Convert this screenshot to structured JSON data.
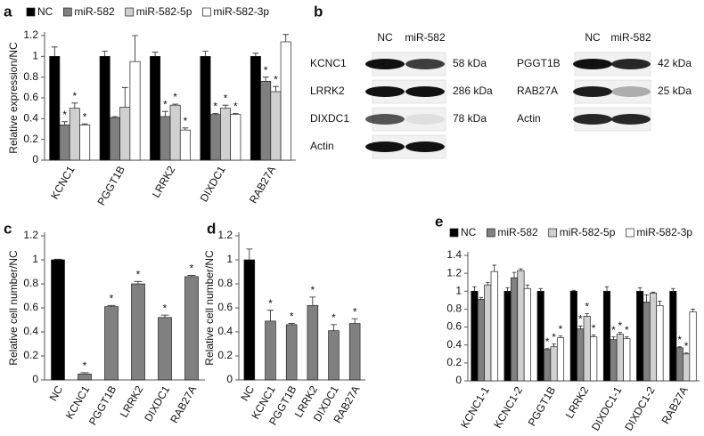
{
  "chart_data": [
    {
      "type": "bar",
      "label": "a",
      "y_label": "Relative expression/NC",
      "categories": [
        "KCNC1",
        "PGGT1B",
        "LRRK2",
        "DIXDC1",
        "RAB27A"
      ],
      "series": [
        {
          "name": "NC",
          "color": "#000000",
          "values": [
            1,
            1,
            1,
            1,
            1
          ],
          "errors": [
            0.09,
            0.05,
            0.04,
            0.05,
            0.03
          ],
          "stars": [
            null,
            null,
            null,
            null,
            null
          ]
        },
        {
          "name": "miR-582",
          "color": "#808080",
          "values": [
            0.34,
            0.41,
            0.42,
            0.44,
            0.76
          ],
          "errors": [
            0.03,
            0.01,
            0.05,
            0.01,
            0.04
          ],
          "stars": [
            "*",
            null,
            "*",
            "*",
            "*"
          ]
        },
        {
          "name": "miR-582-5p",
          "color": "#d0d0d0",
          "values": [
            0.5,
            0.51,
            0.53,
            0.5,
            0.66
          ],
          "errors": [
            0.05,
            0.19,
            0.01,
            0.03,
            0.05
          ],
          "stars": [
            "*",
            null,
            "*",
            "*",
            "*"
          ]
        },
        {
          "name": "miR-582-3p",
          "color": "#ffffff",
          "values": [
            0.34,
            0.95,
            0.29,
            0.44,
            1.14
          ],
          "errors": [
            0.01,
            0.25,
            0.02,
            0.01,
            0.07
          ],
          "stars": [
            "*",
            null,
            "*",
            "*",
            null
          ]
        }
      ],
      "ylim": [
        0,
        1.2
      ],
      "yticks": [
        0,
        0.2,
        0.4,
        0.6,
        0.8,
        1,
        1.2
      ]
    },
    {
      "type": "bar",
      "label": "c",
      "y_label": "Relative cell number/NC",
      "categories": [
        "NC",
        "KCNC1",
        "PGGT1B",
        "LRRK2",
        "DIXDC1",
        "RAB27A"
      ],
      "values": [
        1,
        0.05,
        0.61,
        0.8,
        0.52,
        0.86
      ],
      "errors": [
        0.005,
        0.01,
        0.01,
        0.02,
        0.02,
        0.01
      ],
      "stars": [
        null,
        "*",
        "*",
        "*",
        "*",
        "*"
      ],
      "colors": [
        "#000000",
        "#808080",
        "#808080",
        "#808080",
        "#808080",
        "#808080"
      ],
      "ylim": [
        0,
        1.2
      ],
      "yticks": [
        0,
        0.2,
        0.4,
        0.6,
        0.8,
        1,
        1.2
      ]
    },
    {
      "type": "bar",
      "label": "d",
      "y_label": "Relative cell number/NC",
      "categories": [
        "NC",
        "KCNC1",
        "PGGT1B",
        "LRRK2",
        "DIXDC1",
        "RAB27A"
      ],
      "values": [
        1,
        0.49,
        0.46,
        0.62,
        0.41,
        0.47
      ],
      "errors": [
        0.09,
        0.09,
        0.01,
        0.07,
        0.05,
        0.04
      ],
      "stars": [
        null,
        "*",
        "*",
        "*",
        "*",
        "*"
      ],
      "colors": [
        "#000000",
        "#808080",
        "#808080",
        "#808080",
        "#808080",
        "#808080"
      ],
      "ylim": [
        0,
        1.2
      ],
      "yticks": [
        0,
        0.2,
        0.4,
        0.6,
        0.8,
        1,
        1.2
      ]
    },
    {
      "type": "bar",
      "label": "e",
      "categories": [
        "KCNC1-1",
        "KCNC1-2",
        "PGGT1B",
        "LRRK2",
        "DIXDC1-1",
        "DIXDC1-2",
        "RAB27A"
      ],
      "series": [
        {
          "name": "NC",
          "color": "#000000",
          "values": [
            1,
            1,
            1,
            1,
            1,
            1,
            1
          ],
          "errors": [
            0.05,
            0.04,
            0.03,
            0.01,
            0.05,
            0.04,
            0.03
          ],
          "stars": [
            null,
            null,
            null,
            null,
            null,
            null,
            null
          ]
        },
        {
          "name": "miR-582",
          "color": "#808080",
          "values": [
            0.91,
            1.15,
            0.35,
            0.58,
            0.46,
            0.88,
            0.37
          ],
          "errors": [
            0.02,
            0.06,
            0.01,
            0.03,
            0.03,
            0.08,
            0.01
          ],
          "stars": [
            null,
            null,
            "*",
            "*",
            "*",
            null,
            "*"
          ]
        },
        {
          "name": "miR-582-5p",
          "color": "#d0d0d0",
          "values": [
            1.07,
            1.23,
            0.38,
            0.72,
            0.52,
            0.98,
            0.3
          ],
          "errors": [
            0.03,
            0.02,
            0.03,
            0.03,
            0.02,
            0.01,
            0.01
          ],
          "stars": [
            null,
            null,
            "*",
            "*",
            "*",
            null,
            "*"
          ]
        },
        {
          "name": "miR-582-3p",
          "color": "#ffffff",
          "values": [
            1.22,
            1.03,
            0.48,
            0.49,
            0.47,
            0.84,
            0.77
          ],
          "errors": [
            0.07,
            0.04,
            0.02,
            0.02,
            0.02,
            0.05,
            0.03
          ],
          "stars": [
            null,
            null,
            "*",
            "*",
            "*",
            null,
            null
          ]
        }
      ],
      "ylim": [
        0,
        1.4
      ],
      "yticks": [
        0,
        0.2,
        0.4,
        0.6,
        0.8,
        1,
        1.2,
        1.4
      ]
    }
  ],
  "blots": {
    "label": "b",
    "groups": [
      {
        "lanes": [
          "NC",
          "miR-582"
        ],
        "rows": [
          {
            "protein": "KCNC1",
            "size": "58 kDa"
          },
          {
            "protein": "LRRK2",
            "size": "286 kDa"
          },
          {
            "protein": "DIXDC1",
            "size": "78 kDa"
          },
          {
            "protein": "Actin"
          }
        ]
      },
      {
        "lanes": [
          "NC",
          "miR-582"
        ],
        "rows": [
          {
            "protein": "PGGT1B",
            "size": "42 kDa"
          },
          {
            "protein": "RAB27A",
            "size": "25 kDa"
          },
          {
            "protein": "Actin"
          }
        ]
      }
    ]
  }
}
